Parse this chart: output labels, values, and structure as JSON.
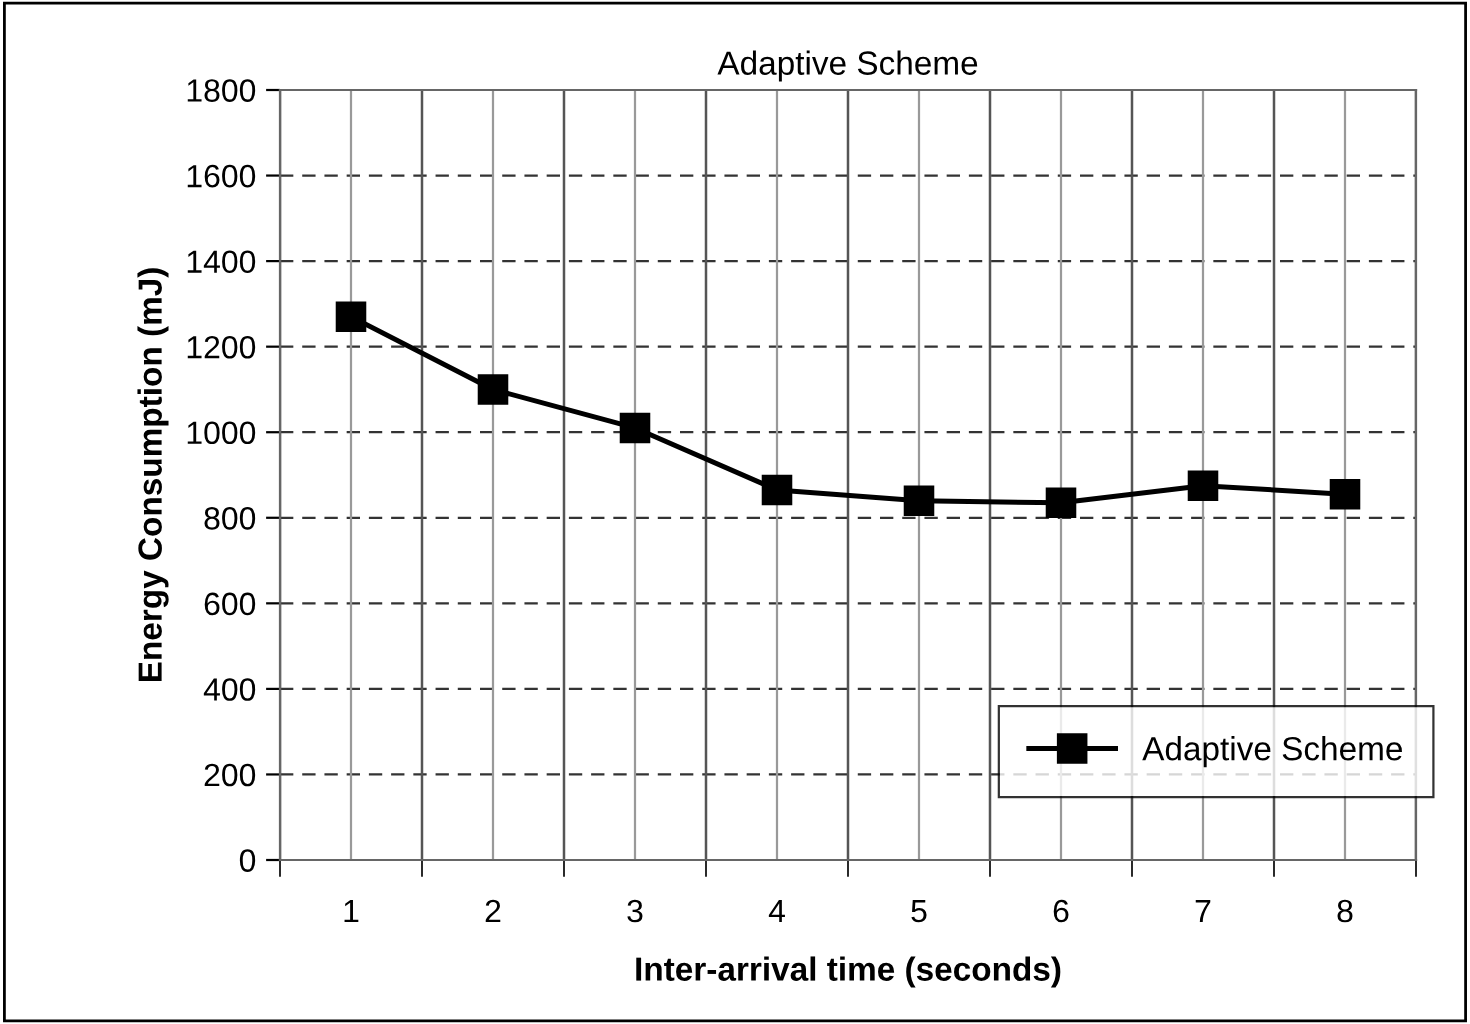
{
  "chart_data": {
    "type": "line",
    "title": "Adaptive Scheme",
    "xlabel": "Inter-arrival time (seconds)",
    "ylabel": "Energy Consumption (mJ)",
    "categories": [
      "1",
      "2",
      "3",
      "4",
      "5",
      "6",
      "7",
      "8"
    ],
    "series": [
      {
        "name": "Adaptive Scheme",
        "color": "#000000",
        "values": [
          1270,
          1100,
          1010,
          865,
          840,
          835,
          875,
          855
        ]
      }
    ],
    "ylim": [
      0,
      1800
    ],
    "yticks": [
      0,
      200,
      400,
      600,
      800,
      1000,
      1200,
      1400,
      1600,
      1800
    ],
    "grid": true,
    "legend": "bottom right",
    "marker": "square",
    "line_style": "solid"
  }
}
